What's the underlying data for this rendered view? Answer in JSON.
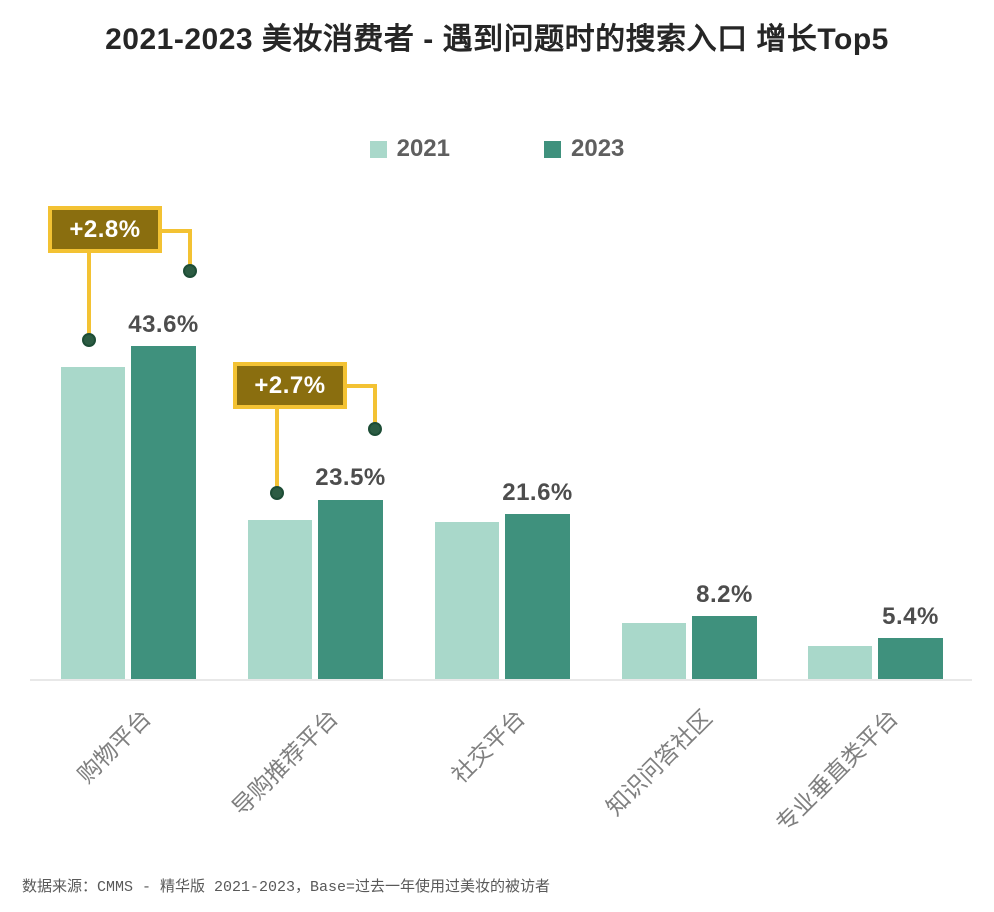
{
  "chart_data": {
    "type": "bar",
    "title": "2021-2023 美妆消费者 - 遇到问题时的搜索入口 增长Top5",
    "categories": [
      "购物平台",
      "导购推荐平台",
      "社交平台",
      "知识问答社区",
      "专业垂直类平台"
    ],
    "series": [
      {
        "name": "2021",
        "color": "#a9d8ca",
        "values": [
          40.8,
          20.8,
          20.6,
          7.3,
          4.3
        ]
      },
      {
        "name": "2023",
        "color": "#3f917d",
        "values": [
          43.6,
          23.5,
          21.6,
          8.2,
          5.4
        ]
      }
    ],
    "value_labels": [
      "43.6%",
      "23.5%",
      "21.6%",
      "8.2%",
      "5.4%"
    ],
    "annotations": [
      {
        "label": "+2.8%",
        "category": "购物平台"
      },
      {
        "label": "+2.7%",
        "category": "导购推荐平台"
      }
    ],
    "xlabel": "",
    "ylabel": "",
    "ylim": [
      0,
      45
    ],
    "value_suffix": "%",
    "grid": false,
    "legend_position": "top"
  },
  "footer": {
    "text": "数据来源：CMMS - 精华版 2021-2023，Base=过去一年使用过美妆的被访者"
  },
  "colors": {
    "bar_2021": "#a9d8ca",
    "bar_2023": "#3f917d",
    "annotation_fill": "#8a6e0f",
    "annotation_border": "#f3c233",
    "connector": "#f3c233",
    "dot": "#2c5c43",
    "dot_border": "#1d4d36",
    "axis_line": "#e8e8e8",
    "title_text": "#262626",
    "value_label": "#4d4d4d",
    "category_label": "#7f7f7f",
    "legend_text": "#5f5f5f",
    "footer_text": "#595959"
  }
}
